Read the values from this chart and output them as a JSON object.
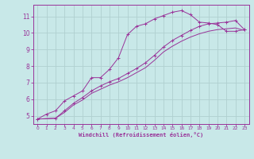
{
  "background_color": "#c8e8e8",
  "grid_color": "#b0d0d0",
  "line_color": "#993399",
  "xlabel": "Windchill (Refroidissement éolien,°C)",
  "ylim": [
    4.5,
    11.7
  ],
  "xlim": [
    -0.5,
    23.5
  ],
  "yticks": [
    5,
    6,
    7,
    8,
    9,
    10,
    11
  ],
  "xticks": [
    0,
    1,
    2,
    3,
    4,
    5,
    6,
    7,
    8,
    9,
    10,
    11,
    12,
    13,
    14,
    15,
    16,
    17,
    18,
    19,
    20,
    21,
    22,
    23
  ],
  "series1_x": [
    0,
    1,
    2,
    3,
    4,
    5,
    6,
    7,
    8,
    9,
    10,
    11,
    12,
    13,
    14,
    15,
    16,
    17,
    18,
    19,
    20,
    21,
    22,
    23
  ],
  "series1_y": [
    4.8,
    5.1,
    5.3,
    5.9,
    6.2,
    6.5,
    7.3,
    7.3,
    7.8,
    8.5,
    9.9,
    10.4,
    10.55,
    10.85,
    11.05,
    11.25,
    11.35,
    11.1,
    10.65,
    10.6,
    10.5,
    10.1,
    10.1,
    10.2
  ],
  "series2_x": [
    0,
    2,
    3,
    4,
    5,
    6,
    7,
    8,
    9,
    10,
    11,
    12,
    13,
    14,
    15,
    16,
    17,
    18,
    19,
    20,
    21,
    22,
    23
  ],
  "series2_y": [
    4.8,
    4.85,
    5.3,
    5.75,
    6.1,
    6.5,
    6.8,
    7.05,
    7.25,
    7.55,
    7.85,
    8.2,
    8.65,
    9.15,
    9.55,
    9.85,
    10.15,
    10.4,
    10.55,
    10.6,
    10.65,
    10.75,
    10.2
  ],
  "series3_x": [
    0,
    2,
    3,
    4,
    5,
    6,
    7,
    8,
    9,
    10,
    11,
    12,
    13,
    14,
    15,
    16,
    17,
    18,
    19,
    20,
    21,
    22,
    23
  ],
  "series3_y": [
    4.8,
    4.85,
    5.2,
    5.65,
    5.95,
    6.35,
    6.6,
    6.85,
    7.05,
    7.3,
    7.6,
    7.9,
    8.35,
    8.85,
    9.2,
    9.5,
    9.75,
    9.95,
    10.1,
    10.2,
    10.25,
    10.3,
    10.15
  ]
}
